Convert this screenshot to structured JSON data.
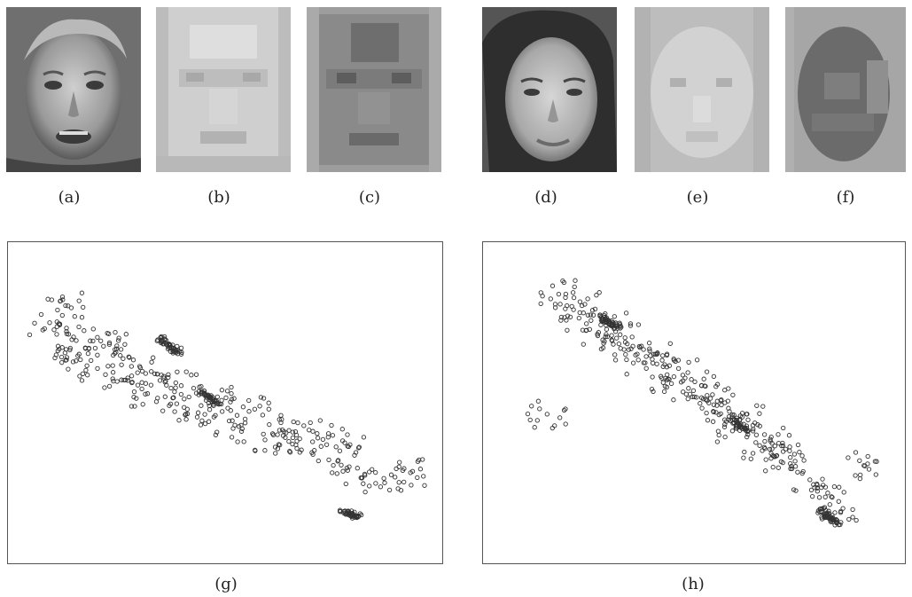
{
  "figure": {
    "panels": [
      {
        "id": "a",
        "label": "(a)",
        "kind": "face-photo"
      },
      {
        "id": "b",
        "label": "(b)",
        "kind": "pixelated-face"
      },
      {
        "id": "c",
        "label": "(c)",
        "kind": "pixelated-face"
      },
      {
        "id": "d",
        "label": "(d)",
        "kind": "face-photo"
      },
      {
        "id": "e",
        "label": "(e)",
        "kind": "pixelated-face"
      },
      {
        "id": "f",
        "label": "(f)",
        "kind": "pixelated-face"
      },
      {
        "id": "g",
        "label": "(g)",
        "kind": "scatter-plot"
      },
      {
        "id": "h",
        "label": "(h)",
        "kind": "scatter-plot"
      }
    ]
  },
  "colors": {
    "marker_stroke": "#333333",
    "plot_border": "#555555",
    "caption_text": "#222222"
  },
  "chart_data": [
    {
      "type": "scatter",
      "panel": "g",
      "title": "",
      "xlabel": "",
      "ylabel": "",
      "axes_visible": false,
      "grid": false,
      "marker": "hollow-circle",
      "trend": "negative",
      "clusters": [
        {
          "x": [
            0.06,
            0.1,
            0.09,
            0.12,
            0.15,
            0.18,
            0.21,
            0.24,
            0.27,
            0.3,
            0.33,
            0.36,
            0.39,
            0.43,
            0.47,
            0.52,
            0.56,
            0.6,
            0.64,
            0.68,
            0.72,
            0.76,
            0.8,
            0.85,
            0.9,
            0.97
          ],
          "y": [
            0.22,
            0.16,
            0.34,
            0.27,
            0.31,
            0.38,
            0.29,
            0.42,
            0.35,
            0.47,
            0.4,
            0.51,
            0.44,
            0.55,
            0.49,
            0.59,
            0.53,
            0.63,
            0.57,
            0.66,
            0.6,
            0.7,
            0.64,
            0.75,
            0.78,
            0.74
          ]
        },
        {
          "x": [
            0.34,
            0.35,
            0.36,
            0.37,
            0.38
          ],
          "y": [
            0.28,
            0.29,
            0.3,
            0.31,
            0.32
          ]
        },
        {
          "x": [
            0.45,
            0.46,
            0.47,
            0.48
          ],
          "y": [
            0.47,
            0.48,
            0.49,
            0.5
          ]
        },
        {
          "x": [
            0.8,
            0.81,
            0.82,
            0.83
          ],
          "y": [
            0.88,
            0.89,
            0.89,
            0.9
          ]
        }
      ]
    },
    {
      "type": "scatter",
      "panel": "h",
      "title": "",
      "xlabel": "",
      "ylabel": "",
      "axes_visible": false,
      "grid": false,
      "marker": "hollow-circle",
      "trend": "negative",
      "clusters": [
        {
          "x": [
            0.15,
            0.18,
            0.21,
            0.25,
            0.28,
            0.31,
            0.34,
            0.37,
            0.4,
            0.43,
            0.46,
            0.49,
            0.52,
            0.55,
            0.58,
            0.61,
            0.64,
            0.67,
            0.7,
            0.73,
            0.76,
            0.8,
            0.84,
            0.88,
            0.12,
            0.94
          ],
          "y": [
            0.12,
            0.2,
            0.16,
            0.26,
            0.22,
            0.31,
            0.27,
            0.36,
            0.33,
            0.42,
            0.38,
            0.47,
            0.44,
            0.53,
            0.5,
            0.59,
            0.56,
            0.65,
            0.62,
            0.71,
            0.68,
            0.77,
            0.83,
            0.88,
            0.54,
            0.72
          ]
        },
        {
          "x": [
            0.26,
            0.27,
            0.28,
            0.29,
            0.3
          ],
          "y": [
            0.2,
            0.21,
            0.22,
            0.22,
            0.23
          ]
        },
        {
          "x": [
            0.6,
            0.61,
            0.62,
            0.63
          ],
          "y": [
            0.56,
            0.57,
            0.58,
            0.59
          ]
        },
        {
          "x": [
            0.83,
            0.84,
            0.85,
            0.86,
            0.87
          ],
          "y": [
            0.88,
            0.89,
            0.9,
            0.91,
            0.92
          ]
        }
      ]
    }
  ]
}
